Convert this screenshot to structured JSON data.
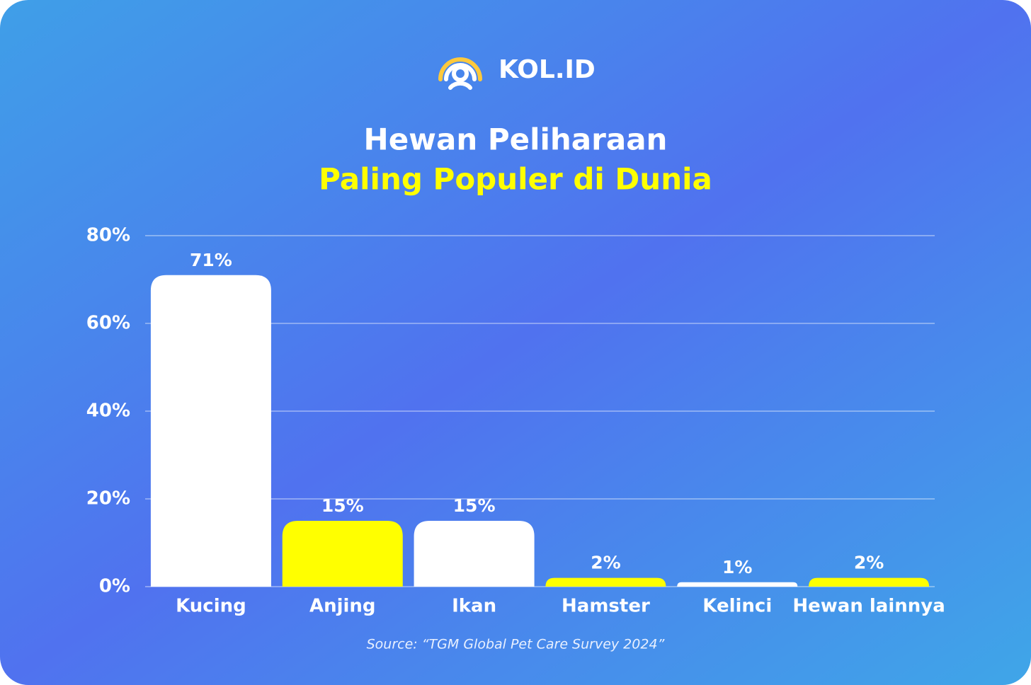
{
  "logo": "KOL.ID",
  "chart_data": {
    "type": "bar",
    "title": "Hewan Peliharaan",
    "subtitle": "Paling Populer di Dunia",
    "categories": [
      "Kucing",
      "Anjing",
      "Ikan",
      "Hamster",
      "Kelinci",
      "Hewan lainnya"
    ],
    "values": [
      71,
      15,
      15,
      2,
      1,
      2
    ],
    "value_labels": [
      "71%",
      "15%",
      "15%",
      "2%",
      "1%",
      "2%"
    ],
    "colors": [
      "#ffffff",
      "#ffff00",
      "#ffffff",
      "#ffff00",
      "#ffffff",
      "#ffff00"
    ],
    "ylim": [
      0,
      80
    ],
    "yticks": [
      {
        "value": 0,
        "label": "0%"
      },
      {
        "value": 20,
        "label": "20%"
      },
      {
        "value": 40,
        "label": "40%"
      },
      {
        "value": 60,
        "label": "60%"
      },
      {
        "value": 80,
        "label": "80%"
      }
    ],
    "grid": true,
    "source": "Source: “TGM Global Pet Care Survey 2024”"
  }
}
